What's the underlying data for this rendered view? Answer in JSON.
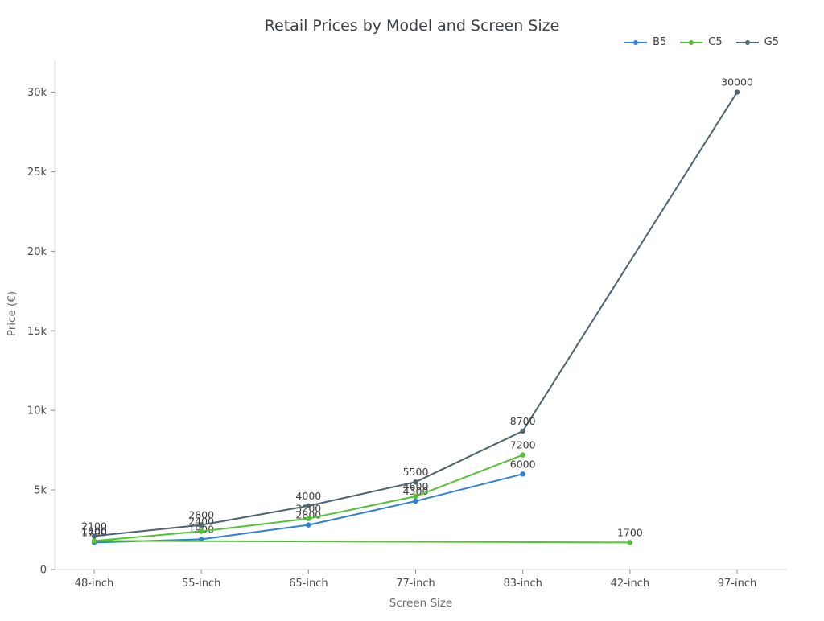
{
  "chart_data": {
    "type": "line",
    "title": "Retail Prices by Model and Screen Size",
    "xlabel": "Screen Size",
    "ylabel": "Price (€)",
    "categories": [
      "48-inch",
      "55-inch",
      "65-inch",
      "77-inch",
      "83-inch",
      "42-inch",
      "97-inch"
    ],
    "ylim": [
      0,
      32000
    ],
    "yticks": [
      {
        "value": 0,
        "label": "0"
      },
      {
        "value": 5000,
        "label": "5k"
      },
      {
        "value": 10000,
        "label": "10k"
      },
      {
        "value": 15000,
        "label": "15k"
      },
      {
        "value": 20000,
        "label": "20k"
      },
      {
        "value": 25000,
        "label": "25k"
      },
      {
        "value": 30000,
        "label": "30k"
      }
    ],
    "grid": false,
    "legend_position": "top-right",
    "marker": "dot",
    "data_labels": true,
    "colors": {
      "axis_line": "#d9d9d9",
      "tick_mark": "#8a8a8a",
      "tick_text": "#4a4a4a",
      "label_text": "#3c3c3c"
    },
    "series": [
      {
        "name": "B5",
        "color": "#2e7fd9",
        "points": [
          [
            "48-inch",
            1700
          ],
          [
            "55-inch",
            1900
          ],
          [
            "65-inch",
            2800
          ],
          [
            "77-inch",
            4300
          ],
          [
            "83-inch",
            6000
          ]
        ]
      },
      {
        "name": "C5",
        "color": "#53c234",
        "points": [
          [
            "42-inch",
            1700
          ],
          [
            "48-inch",
            1800
          ],
          [
            "55-inch",
            2400
          ],
          [
            "65-inch",
            3200
          ],
          [
            "77-inch",
            4600
          ],
          [
            "83-inch",
            7200
          ]
        ]
      },
      {
        "name": "G5",
        "color": "#4b6470",
        "points": [
          [
            "48-inch",
            2100
          ],
          [
            "55-inch",
            2800
          ],
          [
            "65-inch",
            4000
          ],
          [
            "77-inch",
            5500
          ],
          [
            "83-inch",
            8700
          ],
          [
            "97-inch",
            30000
          ]
        ]
      }
    ]
  }
}
